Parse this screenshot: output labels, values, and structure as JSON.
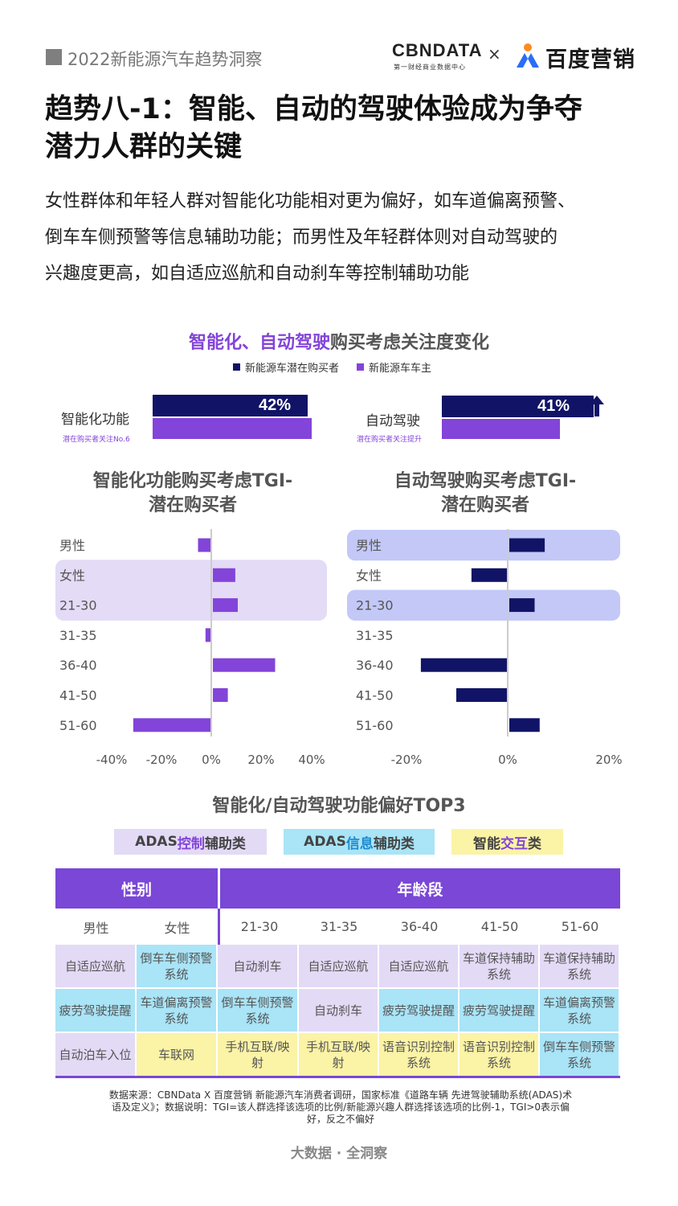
{
  "header": {
    "report_title": "2022新能源汽车趋势洞察",
    "logo_cbn": "CBNDATA",
    "logo_cbn_sub": "第一财经商业数据中心",
    "logo_sep": "×",
    "logo_baidu": "百度营销"
  },
  "title": {
    "line1": "趋势八-1：智能、自动的驾驶体验成为争夺",
    "line2": "潜力人群的关键"
  },
  "intro": {
    "line1": "女性群体和年轻人群对智能化功能相对更为偏好，如车道偏离预警、",
    "line2": "倒车车侧预警等信息辅助功能；而男性及年轻群体则对自动驾驶的",
    "line3": "兴趣度更高，如自适应巡航和自动刹车等控制辅助功能"
  },
  "colors": {
    "navy": "#111466",
    "purple": "#8344d9",
    "highlight_lilac": "#e4dbf7",
    "highlight_blue": "#c3c8f7",
    "tag_control": "#e3daf6",
    "tag_info": "#a9e4f7",
    "tag_interaction": "#fbf3a6"
  },
  "chart_data": [
    {
      "type": "bar",
      "title_part1": "智能化、自动驾驶",
      "title_part2": "购买考虑关注度变化",
      "legend": [
        "新能源车潜在购买者",
        "新能源车车主"
      ],
      "categories": [
        "智能化功能",
        "自动驾驶"
      ],
      "series": [
        {
          "name": "新能源车潜在购买者",
          "values": [
            42,
            41
          ]
        },
        {
          "name": "新能源车车主",
          "values": [
            43,
            32
          ]
        }
      ],
      "data_labels": [
        "42%",
        "41%"
      ],
      "annotations": [
        "潜在购买者关注No.6",
        "潜在购买者关注提升"
      ]
    },
    {
      "type": "bar",
      "title_line1": "智能化功能购买考虑TGI-",
      "title_line2": "潜在购买者",
      "categories": [
        "男性",
        "女性",
        "21-30",
        "31-35",
        "36-40",
        "41-50",
        "51-60"
      ],
      "values": [
        -5,
        9,
        10,
        -2,
        25,
        6,
        -31
      ],
      "xlim": [
        -40,
        40
      ],
      "ticks": [
        "-40%",
        "-20%",
        "0%",
        "20%",
        "40%"
      ],
      "highlighted": [
        "女性",
        "21-30"
      ]
    },
    {
      "type": "bar",
      "title_line1": "自动驾驶购买考虑TGI-",
      "title_line2": "潜在购买者",
      "categories": [
        "男性",
        "女性",
        "21-30",
        "31-35",
        "36-40",
        "41-50",
        "51-60"
      ],
      "values": [
        7,
        -7,
        5,
        0,
        -17,
        -10,
        6
      ],
      "xlim": [
        -20,
        20
      ],
      "ticks": [
        "-20%",
        "0%",
        "20%"
      ],
      "highlighted": [
        "男性",
        "21-30"
      ]
    }
  ],
  "preference": {
    "title": "智能化/自动驾驶功能偏好TOP3",
    "tags": [
      {
        "pre": "ADAS",
        "mid": "控制",
        "post": "辅助类",
        "mid_color": "#8344d9",
        "bg": "#e3daf6"
      },
      {
        "pre": "ADAS",
        "mid": "信息",
        "post": "辅助类",
        "mid_color": "#1e8bd0",
        "bg": "#a9e4f7"
      },
      {
        "pre": "智能",
        "mid": "交互",
        "post": "类",
        "mid_color": "#8344d9",
        "bg": "#fbf3a6"
      }
    ],
    "header_gender": "性别",
    "header_age": "年龄段",
    "columns": [
      "男性",
      "女性",
      "21-30",
      "31-35",
      "36-40",
      "41-50",
      "51-60"
    ],
    "rows": [
      [
        {
          "text": "自适应巡航",
          "cls": "c-ctrl"
        },
        {
          "text": "倒车车侧预警系统",
          "cls": "c-info"
        },
        {
          "text": "自动刹车",
          "cls": "c-ctrl"
        },
        {
          "text": "自适应巡航",
          "cls": "c-ctrl"
        },
        {
          "text": "自适应巡航",
          "cls": "c-ctrl"
        },
        {
          "text": "车道保持辅助系统",
          "cls": "c-ctrl"
        },
        {
          "text": "车道保持辅助系统",
          "cls": "c-ctrl"
        }
      ],
      [
        {
          "text": "疲劳驾驶提醒",
          "cls": "c-info"
        },
        {
          "text": "车道偏离预警系统",
          "cls": "c-info"
        },
        {
          "text": "倒车车侧预警系统",
          "cls": "c-info"
        },
        {
          "text": "自动刹车",
          "cls": "c-ctrl"
        },
        {
          "text": "疲劳驾驶提醒",
          "cls": "c-info"
        },
        {
          "text": "疲劳驾驶提醒",
          "cls": "c-info"
        },
        {
          "text": "车道偏离预警系统",
          "cls": "c-info"
        }
      ],
      [
        {
          "text": "自动泊车入位",
          "cls": "c-ctrl"
        },
        {
          "text": "车联网",
          "cls": "c-inter"
        },
        {
          "text": "手机互联/映射",
          "cls": "c-inter"
        },
        {
          "text": "手机互联/映射",
          "cls": "c-inter"
        },
        {
          "text": "语音识别控制系统",
          "cls": "c-inter"
        },
        {
          "text": "语音识别控制系统",
          "cls": "c-inter"
        },
        {
          "text": "倒车车侧预警系统",
          "cls": "c-info"
        }
      ]
    ]
  },
  "footnote": {
    "line1": "数据来源：CBNData X 百度营销 新能源汽车消费者调研，国家标准《道路车辆 先进驾驶辅助系统(ADAS)术",
    "line2": "语及定义》；数据说明：TGI=该人群选择该选项的比例/新能源兴趣人群选择该选项的比例-1，TGI>0表示偏",
    "line3": "好，反之不偏好"
  },
  "footer": "大数据 · 全洞察"
}
